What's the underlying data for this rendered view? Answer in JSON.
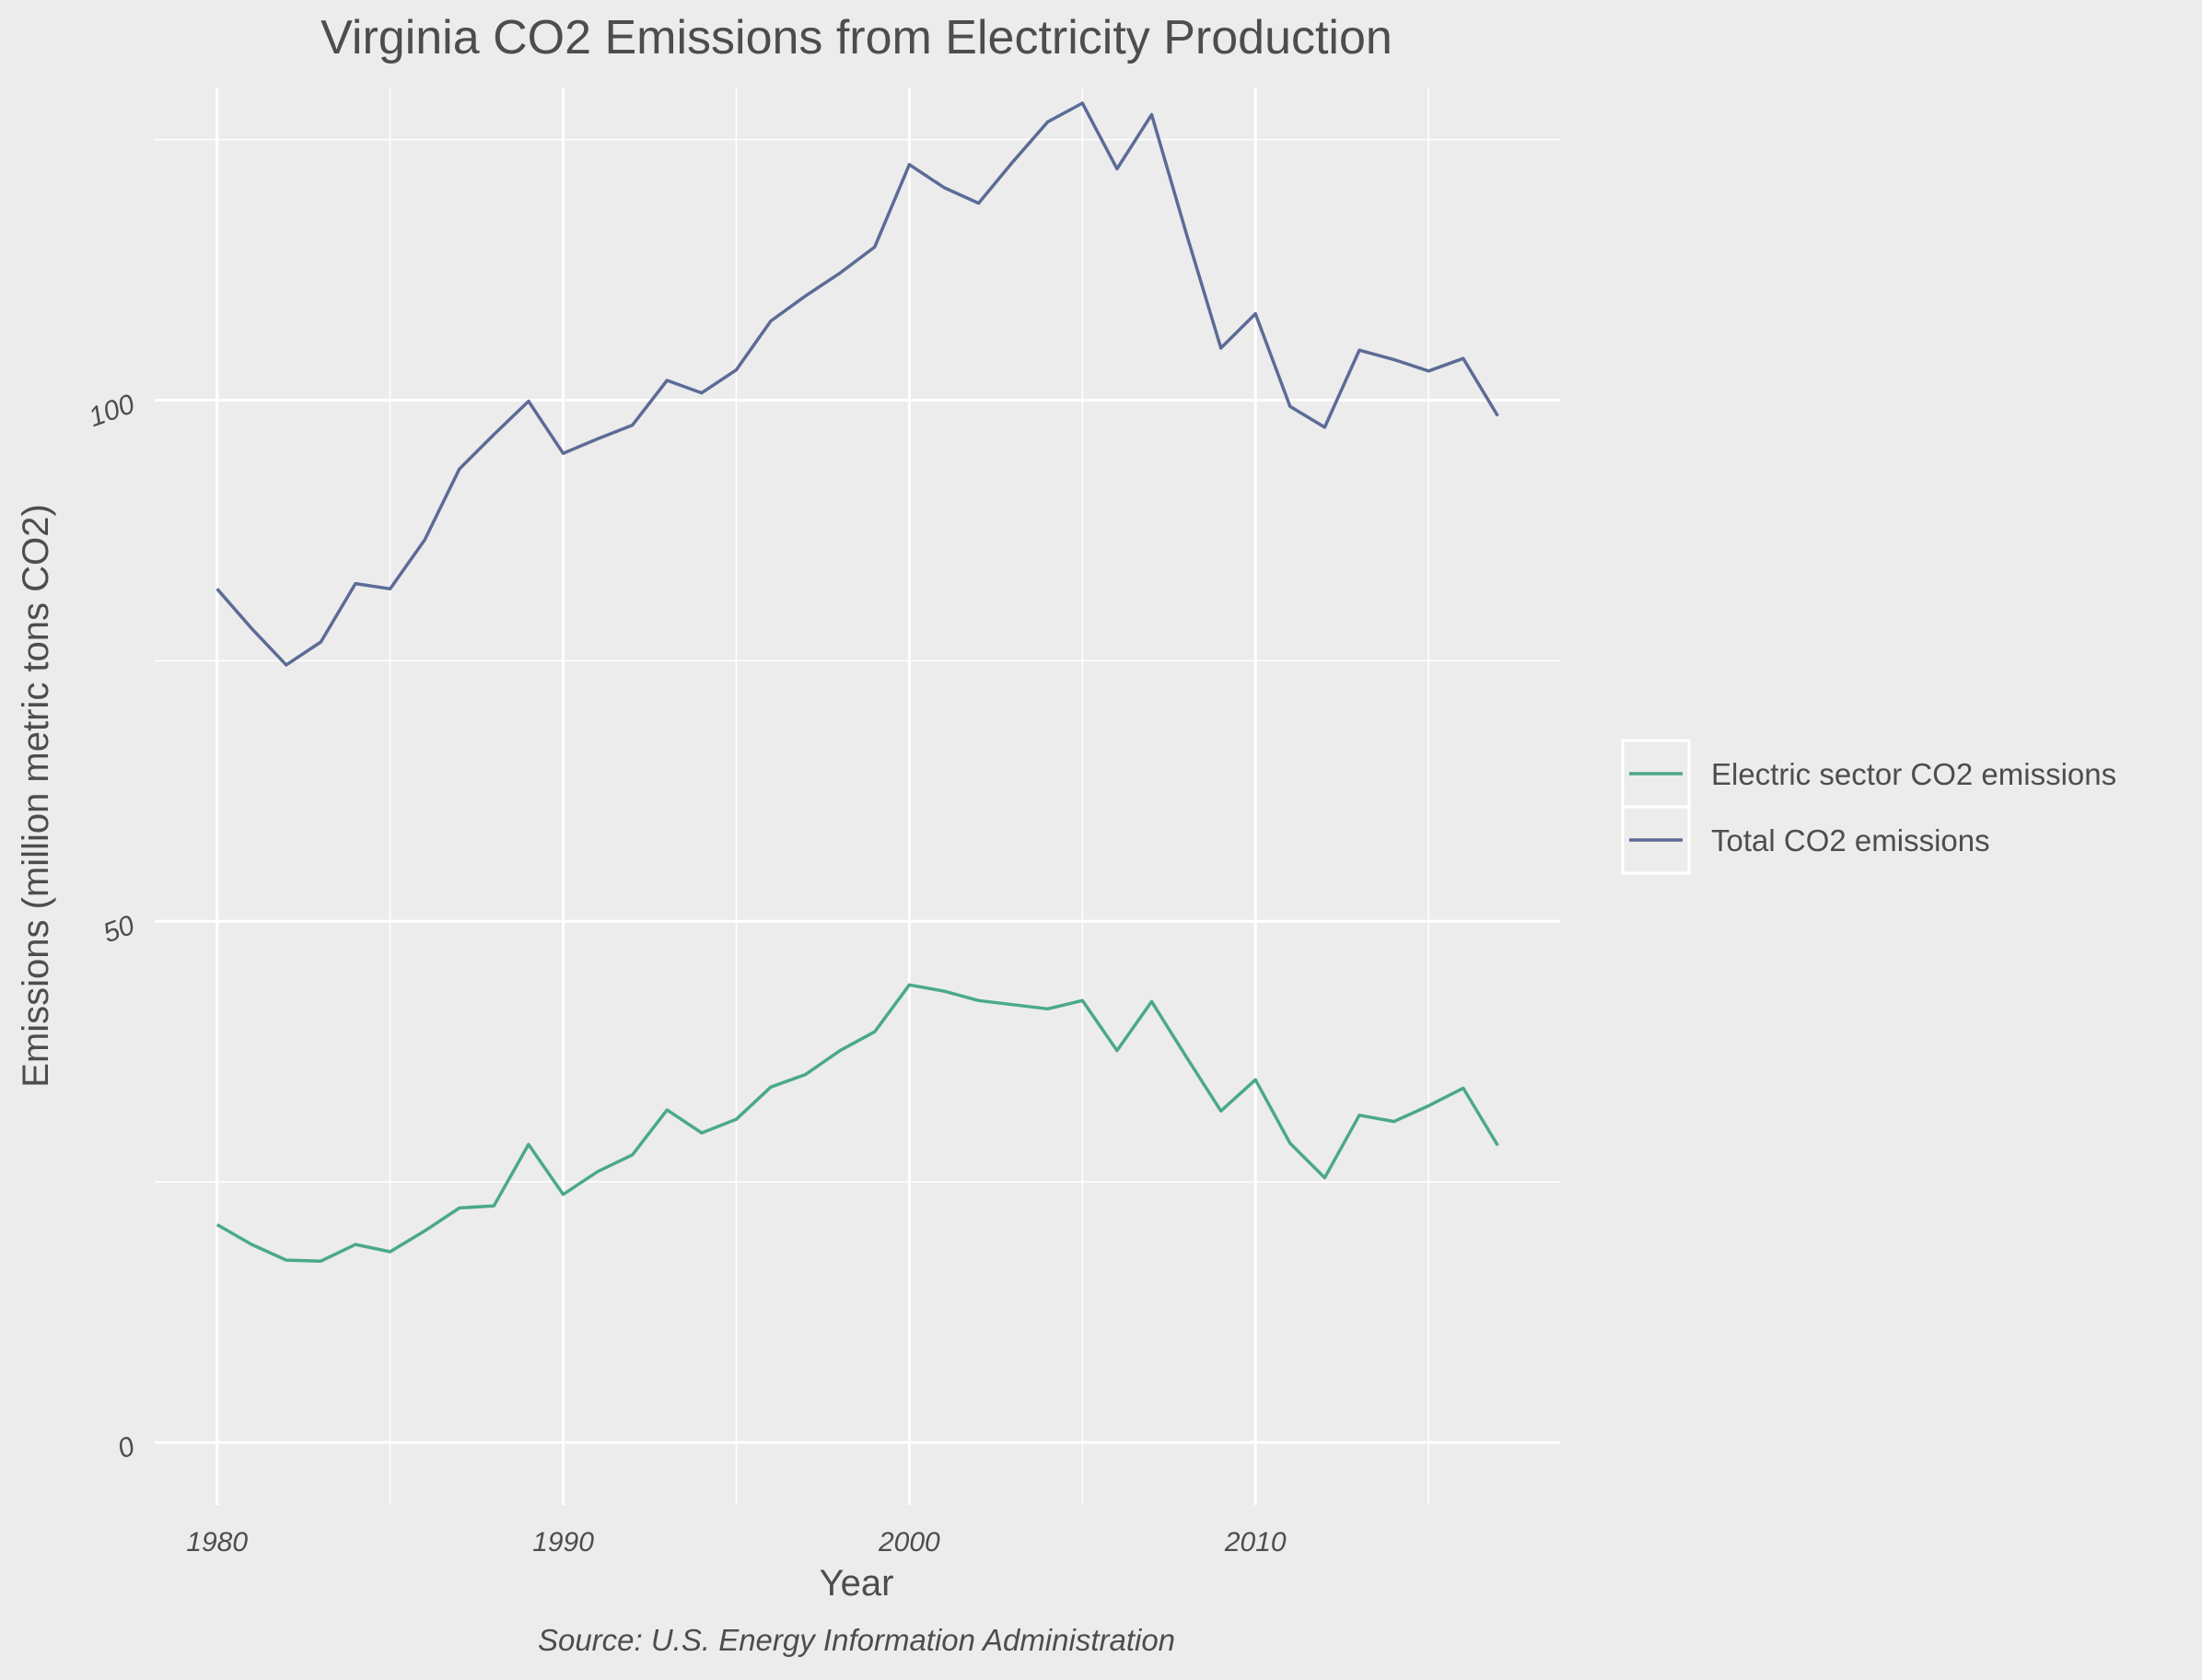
{
  "chart_data": {
    "type": "line",
    "title": "Virginia CO2 Emissions from Electricity Production",
    "xlabel": "Year",
    "ylabel": "Emissions (million metric tons CO2)",
    "caption": "Source: U.S. Energy Information Administration",
    "x_ticks": [
      "1980",
      "1990",
      "2000",
      "2010"
    ],
    "y_ticks": [
      "0",
      "50",
      "100"
    ],
    "xlim": [
      1978.2,
      2018.8
    ],
    "ylim": [
      -6,
      130
    ],
    "grid": true,
    "legend_position": "right",
    "x": [
      1980,
      1981,
      1982,
      1983,
      1984,
      1985,
      1986,
      1987,
      1988,
      1989,
      1990,
      1991,
      1992,
      1993,
      1994,
      1995,
      1996,
      1997,
      1998,
      1999,
      2000,
      2001,
      2002,
      2003,
      2004,
      2005,
      2006,
      2007,
      2008,
      2009,
      2010,
      2011,
      2012,
      2013,
      2014,
      2015,
      2016,
      2017
    ],
    "series": [
      {
        "name": "Electric sector CO2 emissions",
        "color": "#4aa98a",
        "values": [
          20.9,
          19.0,
          17.5,
          17.4,
          19.0,
          18.3,
          20.3,
          22.5,
          22.7,
          28.6,
          23.8,
          26.0,
          27.6,
          31.9,
          29.7,
          31.0,
          34.1,
          35.3,
          37.6,
          39.4,
          43.9,
          43.3,
          42.4,
          42.0,
          41.6,
          42.4,
          37.6,
          42.3,
          37.0,
          31.8,
          34.8,
          28.7,
          25.4,
          31.4,
          30.8,
          32.3,
          34.0,
          28.5
        ]
      },
      {
        "name": "Total CO2 emissions",
        "color": "#5c6b96",
        "values": [
          81.9,
          78.1,
          74.6,
          76.8,
          82.4,
          81.9,
          86.6,
          93.4,
          96.7,
          99.9,
          94.9,
          96.3,
          97.6,
          101.9,
          100.7,
          102.9,
          107.6,
          110.0,
          112.2,
          114.7,
          122.6,
          120.4,
          118.9,
          122.9,
          126.7,
          128.5,
          122.2,
          127.4,
          116.0,
          105.0,
          108.3,
          99.4,
          97.4,
          104.8,
          103.9,
          102.8,
          104.0,
          98.5
        ]
      }
    ]
  }
}
